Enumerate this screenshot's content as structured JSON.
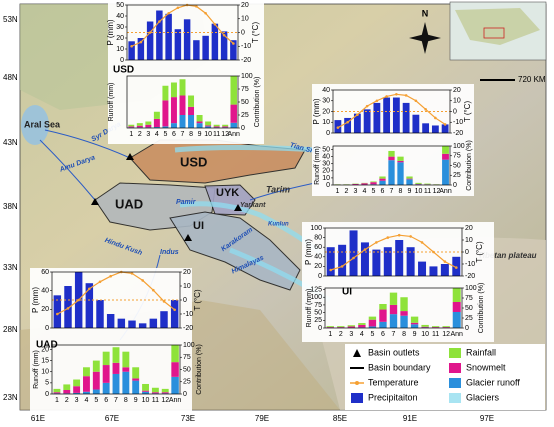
{
  "map": {
    "lat_labels": [
      "53N",
      "48N",
      "43N",
      "38N",
      "33N",
      "28N",
      "23N"
    ],
    "lon_labels": [
      "61E",
      "67E",
      "73E",
      "79E",
      "85E",
      "91E",
      "97E"
    ],
    "places": [
      "Aral Sea",
      "Syr Darya",
      "Amu Darya",
      "USD",
      "UAD",
      "UYK",
      "UI",
      "Tarim",
      "Pamir",
      "Yarkant",
      "Kunlun",
      "Karakoram",
      "Indus",
      "Hindu Kush",
      "Himalayas",
      "Tian Shan",
      "Tibetan plateau"
    ],
    "north": "N",
    "scale": "720 KM"
  },
  "legend": [
    {
      "label": "Basin outlets",
      "color": "#000000"
    },
    {
      "label": "Basin boundary",
      "color": "#000000"
    },
    {
      "label": "Temperature",
      "color": "#f5a033"
    },
    {
      "label": "Precipitaiton",
      "color": "#1f2fc8"
    },
    {
      "label": "Rainfall",
      "color": "#8ee23a"
    },
    {
      "label": "Snowmelt",
      "color": "#e0168c"
    },
    {
      "label": "Glacier runoff",
      "color": "#2a8fdc"
    },
    {
      "label": "Glaciers",
      "color": "#a8e4f2"
    }
  ],
  "panels": [
    {
      "name": "USD",
      "climate": {
        "p_label": "P (mm)",
        "t_label": "T (°C)",
        "ylim": [
          0,
          50
        ],
        "yticks": [
          0,
          10,
          20,
          30,
          40,
          50
        ],
        "y2lim": [
          -20,
          20
        ],
        "y2ticks": [
          -20,
          -10,
          0,
          10,
          20
        ],
        "zero_line": 0,
        "precip": [
          17,
          20,
          35,
          45,
          42,
          28,
          37,
          18,
          22,
          33,
          26,
          18
        ],
        "temp": [
          -10,
          -7,
          0,
          8,
          14,
          18,
          20,
          19,
          14,
          6,
          -2,
          -8
        ]
      },
      "runoff": {
        "y_label": "Runoff (mm)",
        "y2_label": "Contribution (%)",
        "categories": [
          "1",
          "2",
          "3",
          "4",
          "5",
          "6",
          "7",
          "8",
          "9",
          "10",
          "11",
          "12"
        ],
        "ann_label": "Ann",
        "ylim": [
          0,
          16
        ],
        "yticks": [],
        "y2lim": [
          0,
          100
        ],
        "y2ticks": [
          0,
          25,
          50,
          75,
          100
        ],
        "glacier": [
          0.2,
          0.2,
          0.2,
          0.3,
          0.5,
          1.5,
          4,
          4,
          1.5,
          0.5,
          0.2,
          0.2
        ],
        "snowmelt": [
          0.3,
          0.5,
          0.8,
          2.5,
          8,
          8,
          6,
          2.5,
          0.5,
          0.3,
          0.3,
          0.3
        ],
        "rainfall": [
          0.5,
          0.8,
          1,
          2.2,
          4.5,
          4.5,
          5,
          3.5,
          2,
          1.2,
          0.5,
          0.5
        ],
        "ann": {
          "glacier": 10,
          "snowmelt": 35,
          "rainfall": 55
        }
      }
    },
    {
      "climate": {
        "p_label": "P (mm)",
        "t_label": "T (°C)",
        "ylim": [
          0,
          40
        ],
        "yticks": [
          0,
          10,
          20,
          30,
          40
        ],
        "y2lim": [
          -20,
          20
        ],
        "y2ticks": [
          -20,
          -10,
          0,
          10,
          20
        ],
        "zero_line": 0,
        "precip": [
          12,
          14,
          18,
          22,
          28,
          33,
          33,
          28,
          17,
          9,
          7,
          8
        ],
        "temp": [
          -15,
          -10,
          -3,
          5,
          10,
          14,
          16,
          15,
          10,
          2,
          -6,
          -12
        ]
      },
      "runoff": {
        "y_label": "Runoff (mm)",
        "y2_label": "Contribution (%)",
        "categories": [
          "1",
          "2",
          "3",
          "4",
          "5",
          "6",
          "7",
          "8",
          "9",
          "10",
          "11",
          "12"
        ],
        "ann_label": "Ann",
        "ylim": [
          0,
          55
        ],
        "yticks": [
          0,
          10,
          20,
          30,
          40,
          50
        ],
        "y2lim": [
          0,
          100
        ],
        "y2ticks": [
          0,
          25,
          50,
          75,
          100
        ],
        "glacier": [
          0.3,
          0.3,
          0.5,
          0.5,
          1,
          6,
          35,
          32,
          8,
          1,
          0.5,
          0.3
        ],
        "snowmelt": [
          0.3,
          0.3,
          1,
          2,
          3,
          3,
          5,
          2,
          1,
          0.5,
          0.5,
          0.3
        ],
        "rainfall": [
          0.4,
          0.4,
          0.5,
          0.5,
          1,
          3,
          8,
          6,
          3,
          1.5,
          1,
          0.4
        ],
        "ann": {
          "glacier": 65,
          "snowmelt": 15,
          "rainfall": 20
        }
      }
    },
    {
      "name": "UI",
      "climate": {
        "p_label": "P (mm)",
        "t_label": "T (°C)",
        "ylim": [
          0,
          100
        ],
        "yticks": [
          0,
          20,
          40,
          60,
          80,
          100
        ],
        "y2lim": [
          -20,
          20
        ],
        "y2ticks": [
          -20,
          -10,
          0,
          10,
          20
        ],
        "zero_line": 0,
        "precip": [
          60,
          65,
          95,
          70,
          55,
          60,
          75,
          60,
          30,
          20,
          25,
          40
        ],
        "temp": [
          -15,
          -12,
          -5,
          2,
          8,
          12,
          14,
          13,
          8,
          0,
          -8,
          -13
        ]
      },
      "runoff": {
        "y_label": "Runoff (mm)",
        "y2_label": "Contribution (%)",
        "categories": [
          "1",
          "2",
          "3",
          "4",
          "5",
          "6",
          "7",
          "8",
          "9",
          "10",
          "11",
          "12"
        ],
        "ann_label": "Ann",
        "ylim": [
          0,
          130
        ],
        "yticks": [
          0,
          25,
          50,
          75,
          100,
          125
        ],
        "y2lim": [
          0,
          100
        ],
        "y2ticks": [
          0,
          25,
          50,
          75,
          100
        ],
        "glacier": [
          1,
          1,
          1,
          2,
          5,
          20,
          45,
          40,
          12,
          2,
          1,
          1
        ],
        "snowmelt": [
          2,
          2,
          4,
          8,
          22,
          40,
          30,
          15,
          5,
          2,
          2,
          2
        ],
        "rainfall": [
          3,
          3,
          4,
          6,
          10,
          18,
          40,
          45,
          20,
          6,
          3,
          3
        ],
        "ann": {
          "glacier": 40,
          "snowmelt": 25,
          "rainfall": 35
        }
      }
    },
    {
      "name": "UAD",
      "climate": {
        "p_label": "P (mm)",
        "t_label": "T (°C)",
        "ylim": [
          0,
          60
        ],
        "yticks": [
          0,
          20,
          40,
          60
        ],
        "y2lim": [
          -20,
          20
        ],
        "y2ticks": [
          -20,
          -10,
          0,
          10,
          20
        ],
        "zero_line": 0,
        "precip": [
          35,
          45,
          60,
          48,
          30,
          15,
          10,
          8,
          5,
          10,
          18,
          30
        ],
        "temp": [
          -10,
          -6,
          0,
          8,
          13,
          17,
          20,
          19,
          14,
          7,
          -1,
          -7
        ]
      },
      "runoff": {
        "y_label": "Runoff (mm)",
        "y2_label": "Contribution (%)",
        "categories": [
          "1",
          "2",
          "3",
          "4",
          "5",
          "6",
          "7",
          "8",
          "9",
          "10",
          "11",
          "12"
        ],
        "ann_label": "Ann",
        "ylim": [
          0,
          22
        ],
        "yticks": [
          0,
          5,
          10,
          15,
          20
        ],
        "y2lim": [
          0,
          100
        ],
        "y2ticks": [
          0,
          25,
          50,
          75,
          100
        ],
        "glacier": [
          0.3,
          0.3,
          0.5,
          1,
          2,
          5,
          9,
          10,
          6,
          1,
          0.3,
          0.3
        ],
        "snowmelt": [
          0.5,
          1.5,
          3,
          7,
          8,
          8,
          5,
          2,
          1,
          0.5,
          0.5,
          0.5
        ],
        "rainfall": [
          1.5,
          2.5,
          3,
          4,
          5,
          6,
          7,
          7,
          5,
          3,
          2,
          1.5
        ],
        "ann": {
          "glacier": 35,
          "snowmelt": 30,
          "rainfall": 35
        }
      }
    }
  ]
}
